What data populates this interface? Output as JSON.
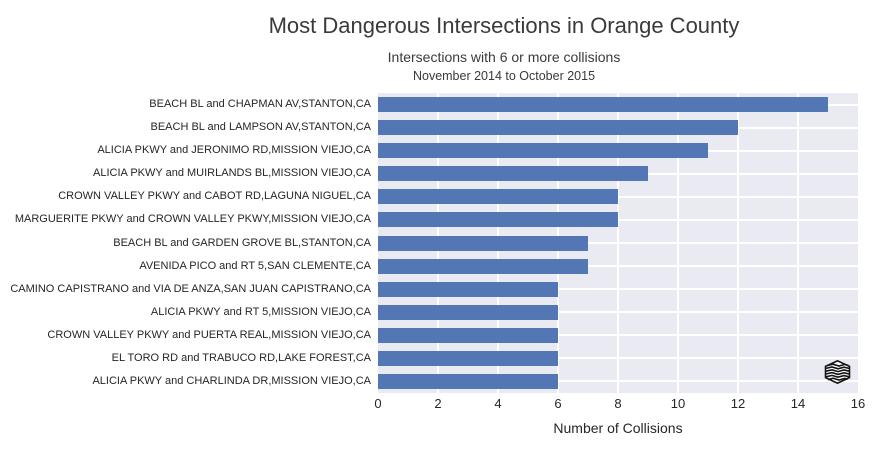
{
  "chart_data": {
    "type": "bar",
    "orientation": "horizontal",
    "title": "Most Dangerous Intersections in Orange County",
    "subtitle": "Intersections with 6 or more collisions",
    "date_range": "November 2014 to October 2015",
    "xlabel": "Number of Collisions",
    "categories": [
      "BEACH BL and CHAPMAN AV,STANTON,CA",
      "BEACH BL and LAMPSON AV,STANTON,CA",
      "ALICIA PKWY and JERONIMO RD,MISSION VIEJO,CA",
      "ALICIA PKWY and MUIRLANDS BL,MISSION VIEJO,CA",
      "CROWN VALLEY PKWY and CABOT RD,LAGUNA NIGUEL,CA",
      "MARGUERITE PKWY and CROWN VALLEY PKWY,MISSION VIEJO,CA",
      "BEACH BL and GARDEN GROVE BL,STANTON,CA",
      "AVENIDA PICO and RT 5,SAN CLEMENTE,CA",
      "CAMINO CAPISTRANO and VIA DE ANZA,SAN JUAN CAPISTRANO,CA",
      "ALICIA PKWY and RT 5,MISSION VIEJO,CA",
      "CROWN VALLEY PKWY and PUERTA REAL,MISSION VIEJO,CA",
      "EL TORO RD and TRABUCO RD,LAKE FOREST,CA",
      "ALICIA PKWY and CHARLINDA DR,MISSION VIEJO,CA"
    ],
    "values": [
      15,
      12,
      11,
      9,
      8,
      8,
      7,
      7,
      6,
      6,
      6,
      6,
      6
    ],
    "xlim": [
      0,
      16
    ],
    "xticks": [
      0,
      2,
      4,
      6,
      8,
      10,
      12,
      14,
      16
    ],
    "grid": true,
    "legend": "none",
    "colors": {
      "bar": "#5376b4",
      "plot_background": "#eaeaf2",
      "gridline": "#ffffff",
      "text": "#262626",
      "title_text": "#3a3a3a"
    }
  },
  "icons": {
    "logo": "mpld3-hexagon-logo"
  }
}
